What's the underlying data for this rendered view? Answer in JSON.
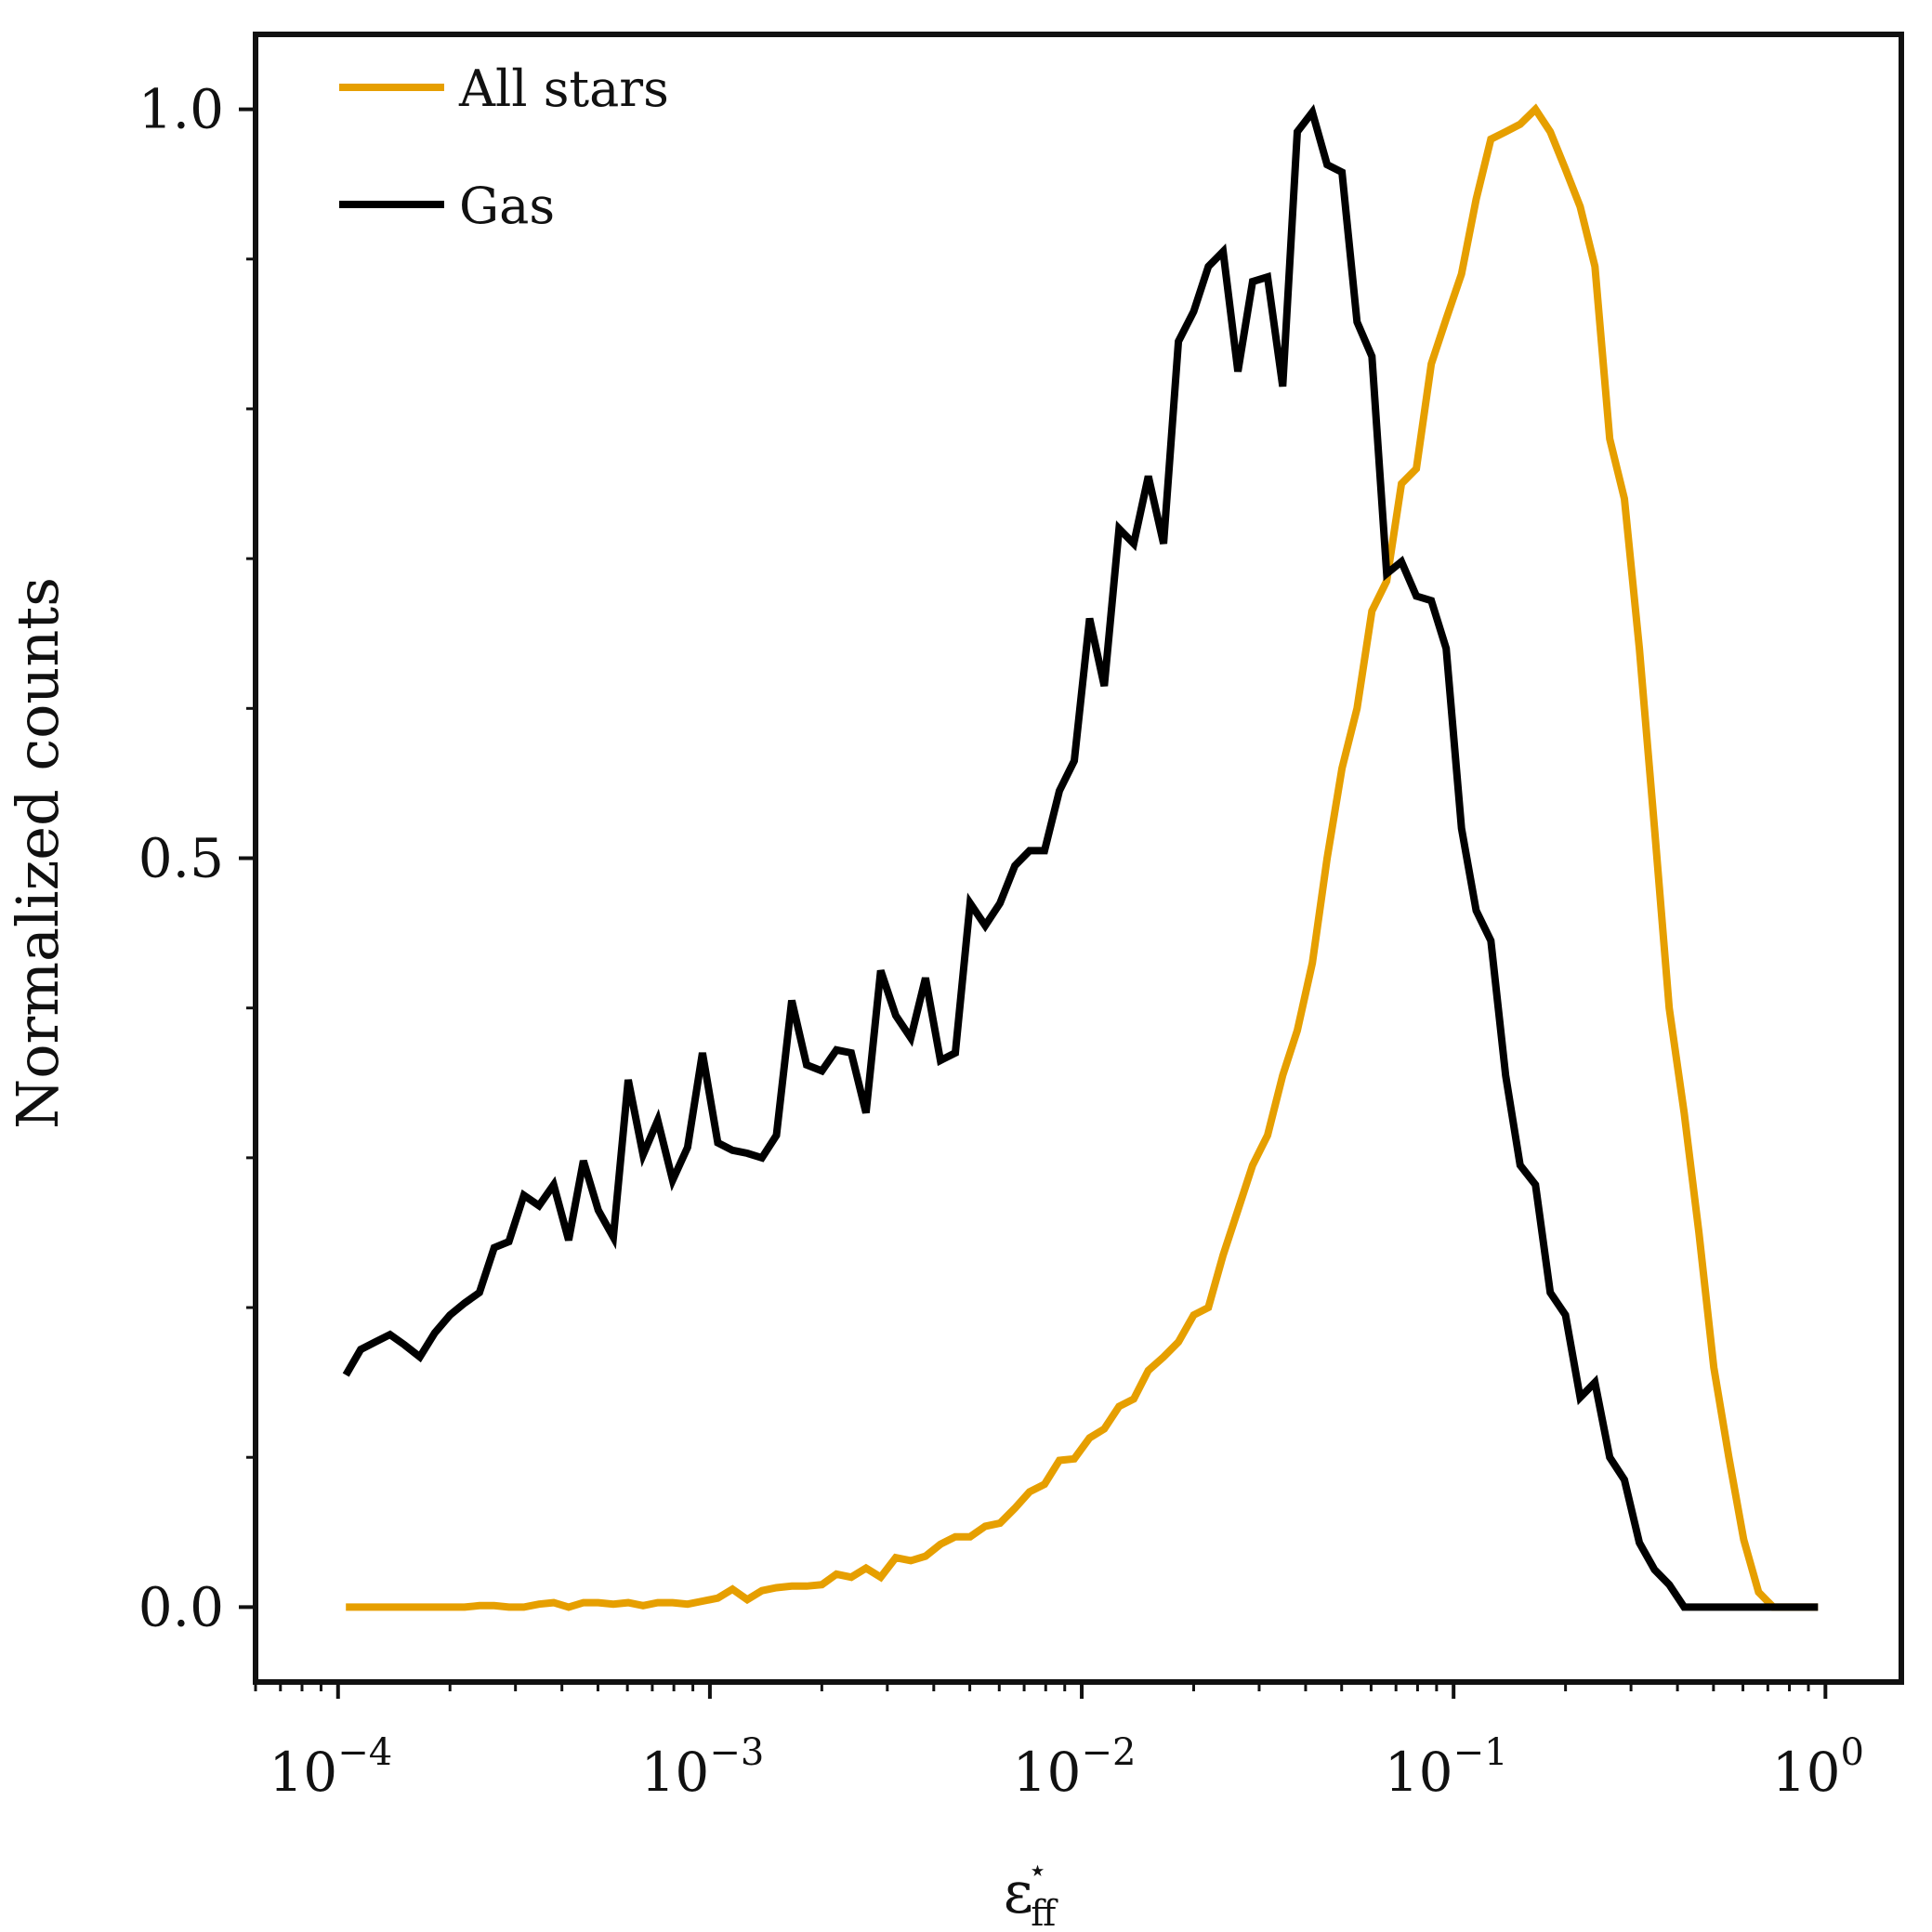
{
  "chart_data": {
    "type": "line",
    "xlabel": "ε",
    "xlabel_sub": "ff",
    "xlabel_sup": "⋆",
    "ylabel": "Normalized counts",
    "x_scale": "log",
    "xlim": [
      6e-05,
      1.6
    ],
    "ylim": [
      -0.05,
      1.05
    ],
    "grid": false,
    "legend_position": "top-left",
    "x_ticks": [
      {
        "value": 0.0001,
        "base": "10",
        "exp": "−4"
      },
      {
        "value": 0.001,
        "base": "10",
        "exp": "−3"
      },
      {
        "value": 0.01,
        "base": "10",
        "exp": "−2"
      },
      {
        "value": 0.1,
        "base": "10",
        "exp": "−1"
      },
      {
        "value": 1,
        "base": "10",
        "exp": "0"
      }
    ],
    "y_ticks": [
      {
        "value": 0.0,
        "label": "0.0"
      },
      {
        "value": 0.5,
        "label": "0.5"
      },
      {
        "value": 1.0,
        "label": "1.0"
      }
    ],
    "series": [
      {
        "name": "All stars",
        "color": "#e69f00",
        "points": [
          [
            0.000105,
            0.0
          ],
          [
            0.000115,
            0.0
          ],
          [
            0.000126,
            0.0
          ],
          [
            0.000138,
            0.0
          ],
          [
            0.000151,
            0.0
          ],
          [
            0.000166,
            0.0
          ],
          [
            0.000182,
            0.0
          ],
          [
            0.0002,
            0.0
          ],
          [
            0.000219,
            0.0
          ],
          [
            0.00024,
            0.001
          ],
          [
            0.000263,
            0.001
          ],
          [
            0.000288,
            0.0
          ],
          [
            0.000316,
            0.0
          ],
          [
            0.000347,
            0.002
          ],
          [
            0.00038,
            0.003
          ],
          [
            0.000417,
            0.0
          ],
          [
            0.000457,
            0.003
          ],
          [
            0.000501,
            0.003
          ],
          [
            0.00055,
            0.002
          ],
          [
            0.000603,
            0.003
          ],
          [
            0.000661,
            0.001
          ],
          [
            0.000724,
            0.003
          ],
          [
            0.000794,
            0.003
          ],
          [
            0.000871,
            0.002
          ],
          [
            0.000955,
            0.004
          ],
          [
            0.00105,
            0.006
          ],
          [
            0.00115,
            0.012
          ],
          [
            0.00126,
            0.005
          ],
          [
            0.00138,
            0.011
          ],
          [
            0.00151,
            0.013
          ],
          [
            0.00166,
            0.014
          ],
          [
            0.00182,
            0.014
          ],
          [
            0.002,
            0.015
          ],
          [
            0.00219,
            0.022
          ],
          [
            0.0024,
            0.02
          ],
          [
            0.00263,
            0.026
          ],
          [
            0.00288,
            0.02
          ],
          [
            0.00316,
            0.033
          ],
          [
            0.00347,
            0.031
          ],
          [
            0.0038,
            0.034
          ],
          [
            0.00417,
            0.042
          ],
          [
            0.00457,
            0.047
          ],
          [
            0.00501,
            0.047
          ],
          [
            0.0055,
            0.054
          ],
          [
            0.00603,
            0.056
          ],
          [
            0.00661,
            0.066
          ],
          [
            0.00724,
            0.077
          ],
          [
            0.00794,
            0.082
          ],
          [
            0.00871,
            0.098
          ],
          [
            0.00955,
            0.099
          ],
          [
            0.0105,
            0.113
          ],
          [
            0.0115,
            0.119
          ],
          [
            0.0126,
            0.134
          ],
          [
            0.0138,
            0.139
          ],
          [
            0.0151,
            0.158
          ],
          [
            0.0166,
            0.167
          ],
          [
            0.0182,
            0.177
          ],
          [
            0.02,
            0.195
          ],
          [
            0.0219,
            0.2
          ],
          [
            0.024,
            0.235
          ],
          [
            0.0263,
            0.265
          ],
          [
            0.0288,
            0.295
          ],
          [
            0.0316,
            0.315
          ],
          [
            0.0347,
            0.355
          ],
          [
            0.038,
            0.385
          ],
          [
            0.0417,
            0.43
          ],
          [
            0.0457,
            0.5
          ],
          [
            0.0501,
            0.56
          ],
          [
            0.055,
            0.6
          ],
          [
            0.0603,
            0.665
          ],
          [
            0.0661,
            0.685
          ],
          [
            0.0724,
            0.75
          ],
          [
            0.0794,
            0.76
          ],
          [
            0.0871,
            0.83
          ],
          [
            0.0955,
            0.86
          ],
          [
            0.105,
            0.89
          ],
          [
            0.115,
            0.94
          ],
          [
            0.126,
            0.98
          ],
          [
            0.138,
            0.985
          ],
          [
            0.151,
            0.99
          ],
          [
            0.166,
            1.0
          ],
          [
            0.182,
            0.985
          ],
          [
            0.2,
            0.96
          ],
          [
            0.219,
            0.935
          ],
          [
            0.24,
            0.895
          ],
          [
            0.263,
            0.78
          ],
          [
            0.288,
            0.74
          ],
          [
            0.316,
            0.64
          ],
          [
            0.347,
            0.52
          ],
          [
            0.38,
            0.4
          ],
          [
            0.417,
            0.33
          ],
          [
            0.457,
            0.25
          ],
          [
            0.501,
            0.16
          ],
          [
            0.55,
            0.1
          ],
          [
            0.603,
            0.045
          ],
          [
            0.661,
            0.01
          ],
          [
            0.724,
            0.0
          ],
          [
            0.794,
            0.0
          ],
          [
            0.871,
            0.0
          ],
          [
            0.955,
            0.0
          ]
        ]
      },
      {
        "name": "Gas",
        "color": "#000000",
        "points": [
          [
            0.000105,
            0.155
          ],
          [
            0.000115,
            0.172
          ],
          [
            0.000126,
            0.177
          ],
          [
            0.000138,
            0.182
          ],
          [
            0.000151,
            0.175
          ],
          [
            0.000166,
            0.167
          ],
          [
            0.000182,
            0.183
          ],
          [
            0.0002,
            0.195
          ],
          [
            0.000219,
            0.203
          ],
          [
            0.00024,
            0.21
          ],
          [
            0.000263,
            0.24
          ],
          [
            0.000288,
            0.244
          ],
          [
            0.000316,
            0.275
          ],
          [
            0.000347,
            0.268
          ],
          [
            0.00038,
            0.282
          ],
          [
            0.000417,
            0.245
          ],
          [
            0.000457,
            0.298
          ],
          [
            0.000501,
            0.265
          ],
          [
            0.00055,
            0.247
          ],
          [
            0.000603,
            0.352
          ],
          [
            0.000661,
            0.302
          ],
          [
            0.000724,
            0.325
          ],
          [
            0.000794,
            0.285
          ],
          [
            0.000871,
            0.307
          ],
          [
            0.000955,
            0.37
          ],
          [
            0.00105,
            0.31
          ],
          [
            0.00115,
            0.305
          ],
          [
            0.00126,
            0.303
          ],
          [
            0.00138,
            0.3
          ],
          [
            0.00151,
            0.315
          ],
          [
            0.00166,
            0.405
          ],
          [
            0.00182,
            0.362
          ],
          [
            0.002,
            0.358
          ],
          [
            0.00219,
            0.372
          ],
          [
            0.0024,
            0.37
          ],
          [
            0.00263,
            0.33
          ],
          [
            0.00288,
            0.425
          ],
          [
            0.00316,
            0.395
          ],
          [
            0.00347,
            0.38
          ],
          [
            0.0038,
            0.42
          ],
          [
            0.00417,
            0.365
          ],
          [
            0.00457,
            0.37
          ],
          [
            0.00501,
            0.47
          ],
          [
            0.0055,
            0.455
          ],
          [
            0.00603,
            0.47
          ],
          [
            0.00661,
            0.495
          ],
          [
            0.00724,
            0.505
          ],
          [
            0.00794,
            0.505
          ],
          [
            0.00871,
            0.545
          ],
          [
            0.00955,
            0.565
          ],
          [
            0.0105,
            0.66
          ],
          [
            0.0115,
            0.615
          ],
          [
            0.0126,
            0.72
          ],
          [
            0.0138,
            0.71
          ],
          [
            0.0151,
            0.755
          ],
          [
            0.0166,
            0.71
          ],
          [
            0.0182,
            0.845
          ],
          [
            0.02,
            0.865
          ],
          [
            0.0219,
            0.895
          ],
          [
            0.024,
            0.905
          ],
          [
            0.0263,
            0.825
          ],
          [
            0.0288,
            0.885
          ],
          [
            0.0316,
            0.888
          ],
          [
            0.0347,
            0.815
          ],
          [
            0.038,
            0.985
          ],
          [
            0.0417,
            0.998
          ],
          [
            0.0457,
            0.963
          ],
          [
            0.0501,
            0.958
          ],
          [
            0.055,
            0.858
          ],
          [
            0.0603,
            0.835
          ],
          [
            0.0661,
            0.69
          ],
          [
            0.0724,
            0.698
          ],
          [
            0.0794,
            0.675
          ],
          [
            0.0871,
            0.672
          ],
          [
            0.0955,
            0.64
          ],
          [
            0.105,
            0.52
          ],
          [
            0.115,
            0.465
          ],
          [
            0.126,
            0.445
          ],
          [
            0.138,
            0.355
          ],
          [
            0.151,
            0.295
          ],
          [
            0.166,
            0.282
          ],
          [
            0.182,
            0.21
          ],
          [
            0.2,
            0.195
          ],
          [
            0.219,
            0.14
          ],
          [
            0.24,
            0.15
          ],
          [
            0.263,
            0.1
          ],
          [
            0.288,
            0.085
          ],
          [
            0.316,
            0.043
          ],
          [
            0.347,
            0.025
          ],
          [
            0.38,
            0.015
          ],
          [
            0.417,
            0.0
          ],
          [
            0.457,
            0.0
          ],
          [
            0.501,
            0.0
          ],
          [
            0.55,
            0.0
          ],
          [
            0.603,
            0.0
          ],
          [
            0.661,
            0.0
          ],
          [
            0.724,
            0.0
          ],
          [
            0.794,
            0.0
          ],
          [
            0.871,
            0.0
          ],
          [
            0.955,
            0.0
          ]
        ]
      }
    ]
  }
}
